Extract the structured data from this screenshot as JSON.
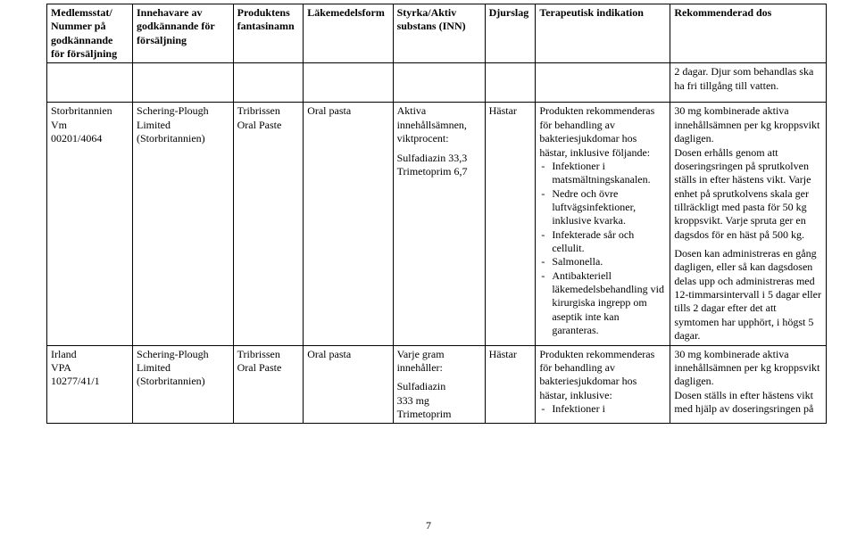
{
  "pageNumber": "7",
  "headers": {
    "c0": "Medlemsstat/ Nummer på godkännande för försäljning",
    "c1": "Innehavare av godkännande för försäljning",
    "c2": "Produktens fantasinamn",
    "c3": "Läkemedelsform",
    "c4": "Styrka/Aktiv substans (INN)",
    "c5": "Djurslag",
    "c6": "Terapeutisk indikation",
    "c7": "Rekommenderad dos"
  },
  "row0": {
    "c7a": "2 dagar. Djur som behandlas ska ha fri tillgång till vatten."
  },
  "row1": {
    "c0a": "Storbritannien",
    "c0b": "Vm",
    "c0c": "00201/4064",
    "c1a": "Schering-Plough Limited",
    "c1b": "(Storbritannien)",
    "c2a": "Tribrissen Oral Paste",
    "c3a": "Oral pasta",
    "c4a": "Aktiva innehållsämnen, viktprocent:",
    "c4b": "Sulfadiazin 33,3",
    "c4c": "Trimetoprim 6,7",
    "c5a": "Hästar",
    "c6a": "Produkten rekommenderas för behandling av bakteriesjukdomar hos hästar, inklusive följande:",
    "c6_li1": "Infektioner i matsmältnings­kanalen.",
    "c6_li2": "Nedre och övre luftvägsinfektioner, inklusive kvarka.",
    "c6_li3": "Infekterade sår och cellulit.",
    "c6_li4": "Salmonella.",
    "c6_li5": "Antibakteriell läkemedelsbehandling vid kirurgiska ingrepp om aseptik inte kan garanteras.",
    "c7a": "30 mg kombinerade aktiva innehållsämnen per kg kroppsvikt dagligen.",
    "c7b": "Dosen erhålls genom att doseringsringen på sprutkolven ställs in efter hästens vikt. Varje enhet på sprutkolvens skala ger tillräckligt med pasta för 50 kg kroppsvikt. Varje spruta ger en dagsdos för en häst på 500 kg.",
    "c7c": "Dosen kan administreras en gång dagligen, eller så kan dagsdosen delas upp och administreras med 12-timmarsintervall i 5 dagar eller tills 2 dagar efter det att symtomen har upphört, i högst 5 dagar."
  },
  "row2": {
    "c0a": "Irland",
    "c0b": "VPA",
    "c0c": "10277/41/1",
    "c1a": "Schering-Plough Limited",
    "c1b": "(Storbritannien)",
    "c2a": "Tribrissen Oral Paste",
    "c3a": "Oral pasta",
    "c4a": "Varje gram innehåller:",
    "c4b": "Sulfadiazin",
    "c4c": "333 mg",
    "c4d": "Trimetoprim",
    "c5a": "Hästar",
    "c6a": "Produkten rekommenderas för behandling av bakteriesjukdomar hos hästar, inklusive:",
    "c6_li1": "Infektioner i",
    "c7a": "30 mg kombinerade aktiva innehållsämnen per kg kroppsvikt dagligen.",
    "c7b": "Dosen ställs in efter hästens vikt med hjälp av doseringsringen på"
  }
}
